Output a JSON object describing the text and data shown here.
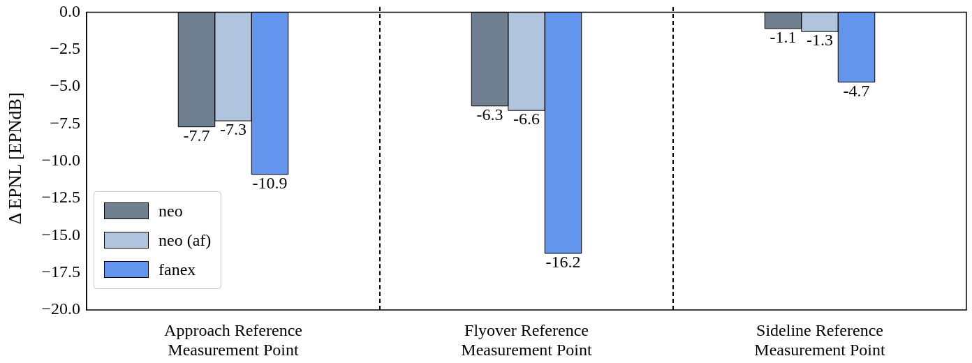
{
  "chart_data": {
    "type": "bar",
    "ylabel": "Δ EPNL  [EPNdB]",
    "categories": [
      "Approach Reference\nMeasurement Point",
      "Flyover Reference\nMeasurement Point",
      "Sideline Reference\nMeasurement Point"
    ],
    "series": [
      {
        "name": "neo",
        "color": "#708090",
        "values": [
          -7.7,
          -6.3,
          -1.1
        ]
      },
      {
        "name": "neo (af)",
        "color": "#b0c4de",
        "values": [
          -7.3,
          -6.6,
          -1.3
        ]
      },
      {
        "name": "fanex",
        "color": "#6495ed",
        "values": [
          -10.9,
          -16.2,
          -4.7
        ]
      }
    ],
    "ylim": [
      -20,
      0
    ],
    "yticks": [
      {
        "value": -20,
        "label": "−20.0"
      },
      {
        "value": -17.5,
        "label": "−17.5"
      },
      {
        "value": -15,
        "label": "−15.0"
      },
      {
        "value": -12.5,
        "label": "−12.5"
      },
      {
        "value": -10,
        "label": "−10.0"
      },
      {
        "value": -7.5,
        "label": "−7.5"
      },
      {
        "value": -5,
        "label": "−5.0"
      },
      {
        "value": -2.5,
        "label": "−2.5"
      },
      {
        "value": 0,
        "label": "0.0"
      }
    ],
    "data_labels": true,
    "legend": "bottom left"
  }
}
